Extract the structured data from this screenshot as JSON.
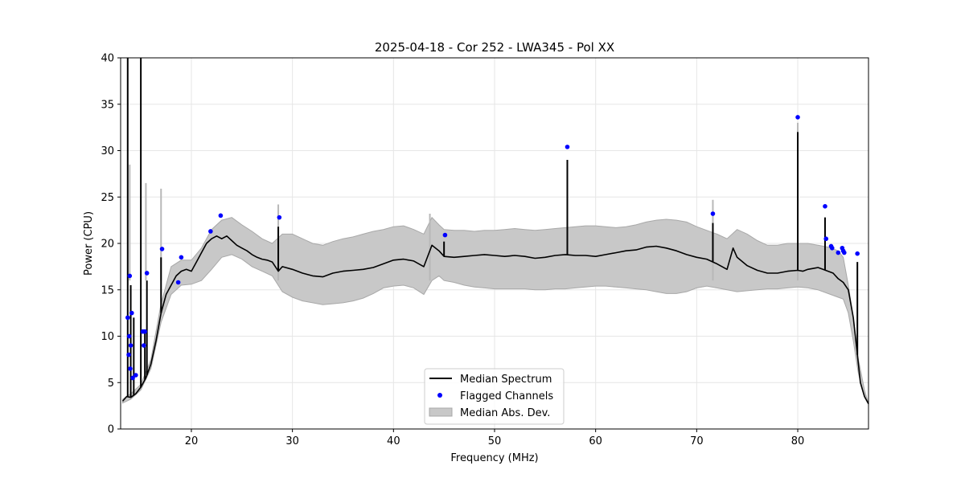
{
  "chart_data": {
    "type": "line",
    "title": "2025-04-18 - Cor 252 - LWA345 - Pol XX",
    "xlabel": "Frequency (MHz)",
    "ylabel": "Power (CPU)",
    "xlim": [
      13.0,
      87.0
    ],
    "ylim": [
      0,
      40
    ],
    "grid": true,
    "x_ticks": [
      20,
      30,
      40,
      50,
      60,
      70,
      80
    ],
    "x_tick_labels": [
      "20",
      "30",
      "40",
      "50",
      "60",
      "70",
      "80"
    ],
    "y_ticks": [
      0,
      5,
      10,
      15,
      20,
      25,
      30,
      35,
      40
    ],
    "y_tick_labels": [
      "0",
      "5",
      "10",
      "15",
      "20",
      "25",
      "30",
      "35",
      "40"
    ],
    "legend_position": "bottom-center",
    "legend": [
      {
        "label": "Median Spectrum",
        "kind": "line",
        "color": "#000000"
      },
      {
        "label": "Flagged Channels",
        "kind": "point",
        "color": "#0000ff"
      },
      {
        "label": "Median Abs. Dev.",
        "kind": "band",
        "color": "#c8c8c8"
      }
    ],
    "series": [
      {
        "name": "Median Spectrum",
        "color": "#000000",
        "x": [
          13.2,
          13.6,
          14.0,
          14.5,
          15.0,
          15.5,
          16.0,
          16.5,
          17.0,
          17.5,
          18.0,
          18.5,
          19.0,
          19.5,
          20.0,
          20.5,
          21.0,
          21.5,
          22.0,
          22.5,
          23.0,
          23.5,
          24.0,
          24.5,
          25.0,
          25.5,
          26.0,
          26.5,
          27.0,
          27.5,
          28.0,
          28.6,
          29.0,
          30.0,
          31.0,
          32.0,
          33.0,
          34.0,
          35.0,
          36.0,
          37.0,
          38.0,
          39.0,
          40.0,
          41.0,
          42.0,
          43.0,
          43.8,
          44.5,
          45.0,
          46.0,
          47.0,
          48.0,
          49.0,
          50.0,
          51.0,
          52.0,
          53.0,
          54.0,
          55.0,
          56.0,
          57.0,
          58.0,
          59.0,
          60.0,
          61.0,
          62.0,
          63.0,
          64.0,
          65.0,
          66.0,
          67.0,
          68.0,
          69.0,
          70.0,
          71.0,
          72.0,
          73.0,
          73.6,
          74.0,
          75.0,
          76.0,
          77.0,
          78.0,
          79.0,
          80.0,
          80.5,
          81.0,
          81.5,
          82.0,
          82.5,
          83.0,
          83.5,
          84.0,
          84.5,
          85.0,
          85.5,
          85.9,
          86.2,
          86.6,
          87.0
        ],
        "values": [
          3.0,
          3.5,
          3.4,
          3.8,
          4.5,
          5.5,
          7.0,
          9.5,
          12.5,
          14.5,
          15.5,
          16.5,
          17.0,
          17.2,
          17.0,
          18.0,
          19.0,
          20.0,
          20.5,
          20.8,
          20.5,
          20.8,
          20.3,
          19.8,
          19.5,
          19.2,
          18.8,
          18.5,
          18.3,
          18.2,
          18.0,
          17.0,
          17.5,
          17.2,
          16.8,
          16.5,
          16.4,
          16.8,
          17.0,
          17.1,
          17.2,
          17.4,
          17.8,
          18.2,
          18.3,
          18.1,
          17.5,
          19.8,
          19.2,
          18.6,
          18.5,
          18.6,
          18.7,
          18.8,
          18.7,
          18.6,
          18.7,
          18.6,
          18.4,
          18.5,
          18.7,
          18.8,
          18.7,
          18.7,
          18.6,
          18.8,
          19.0,
          19.2,
          19.3,
          19.6,
          19.7,
          19.5,
          19.2,
          18.8,
          18.5,
          18.3,
          17.8,
          17.2,
          19.5,
          18.5,
          17.6,
          17.1,
          16.8,
          16.8,
          17.0,
          17.1,
          17.0,
          17.2,
          17.3,
          17.4,
          17.2,
          17.0,
          16.8,
          16.2,
          15.8,
          15.0,
          12.0,
          8.0,
          5.0,
          3.5,
          2.7
        ]
      },
      {
        "name": "Median Abs. Dev.",
        "kind": "band",
        "color": "#c8c8c8",
        "x": [
          13.2,
          14.0,
          15.0,
          16.0,
          17.0,
          18.0,
          19.0,
          20.0,
          21.0,
          22.0,
          23.0,
          24.0,
          25.0,
          26.0,
          27.0,
          28.0,
          29.0,
          30.0,
          31.0,
          32.0,
          33.0,
          34.0,
          35.0,
          36.0,
          37.0,
          38.0,
          39.0,
          40.0,
          41.0,
          42.0,
          43.0,
          43.8,
          44.5,
          45.0,
          46.0,
          47.0,
          48.0,
          49.0,
          50.0,
          51.0,
          52.0,
          53.0,
          54.0,
          55.0,
          56.0,
          57.0,
          58.0,
          59.0,
          60.0,
          61.0,
          62.0,
          63.0,
          64.0,
          65.0,
          66.0,
          67.0,
          68.0,
          69.0,
          70.0,
          71.0,
          72.0,
          73.0,
          74.0,
          75.0,
          76.0,
          77.0,
          78.0,
          79.0,
          80.0,
          81.0,
          82.0,
          83.0,
          84.0,
          84.5,
          85.0,
          85.5,
          86.0,
          86.6,
          87.0
        ],
        "lower": [
          2.8,
          3.2,
          4.2,
          6.5,
          11.5,
          14.5,
          15.5,
          15.6,
          16.0,
          17.2,
          18.5,
          18.8,
          18.3,
          17.5,
          17.0,
          16.5,
          14.8,
          14.2,
          13.8,
          13.6,
          13.4,
          13.5,
          13.6,
          13.8,
          14.1,
          14.6,
          15.2,
          15.4,
          15.5,
          15.2,
          14.5,
          16.0,
          16.5,
          16.0,
          15.8,
          15.5,
          15.3,
          15.2,
          15.1,
          15.1,
          15.1,
          15.1,
          15.0,
          15.0,
          15.1,
          15.1,
          15.2,
          15.3,
          15.4,
          15.4,
          15.3,
          15.2,
          15.1,
          15.0,
          14.8,
          14.6,
          14.6,
          14.8,
          15.2,
          15.4,
          15.2,
          15.0,
          14.8,
          14.9,
          15.0,
          15.1,
          15.1,
          15.2,
          15.3,
          15.2,
          15.0,
          14.6,
          14.2,
          14.0,
          12.5,
          9.5,
          6.0,
          3.5,
          2.7
        ],
        "upper": [
          3.2,
          3.8,
          4.8,
          7.5,
          13.5,
          17.5,
          18.2,
          18.2,
          19.5,
          21.5,
          22.5,
          22.8,
          22.0,
          21.3,
          20.5,
          20.0,
          21.0,
          21.0,
          20.5,
          20.0,
          19.8,
          20.2,
          20.5,
          20.7,
          21.0,
          21.3,
          21.5,
          21.8,
          21.9,
          21.5,
          21.0,
          22.8,
          22.0,
          21.5,
          21.4,
          21.4,
          21.3,
          21.4,
          21.4,
          21.5,
          21.6,
          21.5,
          21.4,
          21.5,
          21.6,
          21.7,
          21.8,
          21.9,
          21.9,
          21.8,
          21.7,
          21.8,
          22.0,
          22.3,
          22.5,
          22.6,
          22.5,
          22.3,
          21.8,
          21.4,
          21.0,
          20.5,
          21.5,
          21.0,
          20.3,
          19.8,
          19.8,
          20.0,
          20.0,
          20.0,
          19.8,
          19.6,
          19.2,
          18.5,
          15.5,
          12.0,
          7.5,
          4.2,
          2.7
        ]
      }
    ],
    "spikes": [
      {
        "x": 13.7,
        "value": 40.0
      },
      {
        "x": 14.0,
        "value": 15.5
      },
      {
        "x": 14.3,
        "value": 12.0
      },
      {
        "x": 15.0,
        "value": 40.0
      },
      {
        "x": 15.4,
        "value": 10.5
      },
      {
        "x": 15.6,
        "value": 16.0
      },
      {
        "x": 17.0,
        "value": 18.5
      },
      {
        "x": 28.6,
        "value": 21.8
      },
      {
        "x": 45.0,
        "value": 20.2
      },
      {
        "x": 57.2,
        "value": 29.0
      },
      {
        "x": 71.6,
        "value": 22.2
      },
      {
        "x": 80.0,
        "value": 32.0
      },
      {
        "x": 82.7,
        "value": 22.8
      },
      {
        "x": 85.9,
        "value": 18.0
      }
    ],
    "band_spikes": [
      {
        "x": 13.9,
        "value": 28.5
      },
      {
        "x": 15.5,
        "value": 26.5
      },
      {
        "x": 17.0,
        "value": 25.9
      },
      {
        "x": 28.6,
        "value": 24.2
      },
      {
        "x": 43.6,
        "value": 23.2
      },
      {
        "x": 71.6,
        "value": 24.7
      },
      {
        "x": 80.0,
        "value": 33.0
      }
    ],
    "flagged_channels": {
      "x": [
        13.7,
        13.8,
        13.85,
        13.9,
        13.95,
        14.0,
        14.1,
        14.2,
        14.5,
        15.2,
        15.3,
        15.4,
        15.6,
        17.1,
        18.7,
        19.0,
        21.9,
        22.9,
        28.7,
        45.1,
        57.2,
        71.6,
        80.0,
        82.7,
        82.8,
        83.3,
        83.4,
        84.0,
        84.4,
        84.5,
        84.6,
        85.9
      ],
      "values": [
        12.0,
        8.0,
        10.0,
        16.5,
        6.5,
        9.0,
        12.5,
        5.5,
        5.8,
        10.5,
        9.0,
        10.5,
        16.8,
        19.4,
        15.8,
        18.5,
        21.3,
        23.0,
        22.8,
        20.9,
        30.4,
        23.2,
        33.6,
        24.0,
        20.5,
        19.7,
        19.5,
        19.0,
        19.5,
        19.2,
        19.0,
        18.9
      ]
    }
  }
}
